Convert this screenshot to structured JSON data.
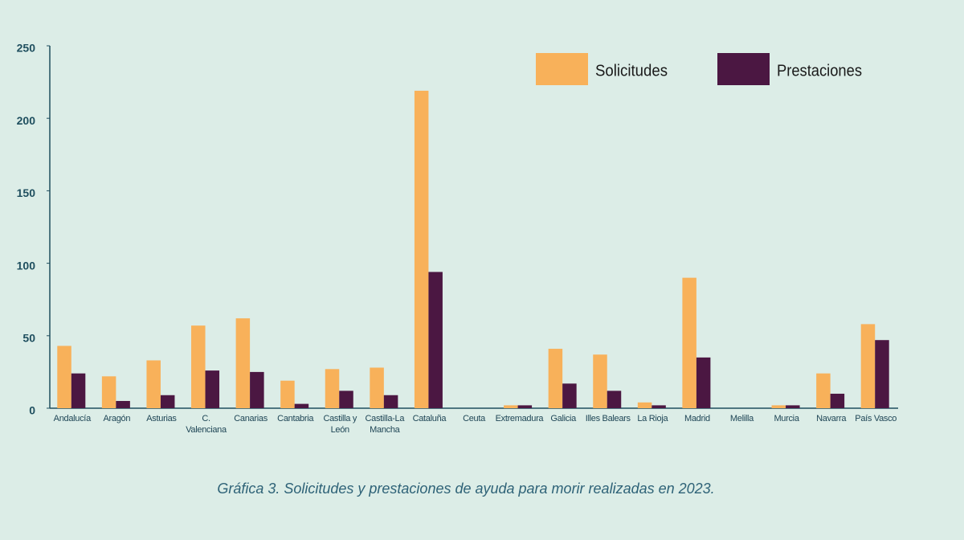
{
  "chart_data": {
    "type": "bar",
    "caption": "Gráfica 3. Solicitudes y prestaciones de ayuda para morir realizadas en 2023.",
    "categories": [
      "Andalucía",
      "Aragón",
      "Asturias",
      "C. Valenciana",
      "Canarias",
      "Cantabria",
      "Castilla y León",
      "Castilla-La Mancha",
      "Cataluña",
      "Ceuta",
      "Extremadura",
      "Galicia",
      "Illes Balears",
      "La Rioja",
      "Madrid",
      "Melilla",
      "Murcia",
      "Navarra",
      "País Vasco"
    ],
    "series": [
      {
        "name": "Solicitudes",
        "color": "#f8b15a",
        "values": [
          43,
          22,
          33,
          57,
          62,
          19,
          27,
          28,
          219,
          0,
          2,
          41,
          37,
          4,
          90,
          0,
          2,
          24,
          58
        ]
      },
      {
        "name": "Prestaciones",
        "color": "#4b1742",
        "values": [
          24,
          5,
          9,
          26,
          25,
          3,
          12,
          9,
          94,
          0,
          2,
          17,
          12,
          2,
          35,
          0,
          2,
          10,
          47
        ]
      }
    ],
    "ylim": [
      0,
      250
    ],
    "yticks": [
      0,
      50,
      100,
      150,
      200,
      250
    ],
    "grid": false,
    "legend": "top-right"
  }
}
